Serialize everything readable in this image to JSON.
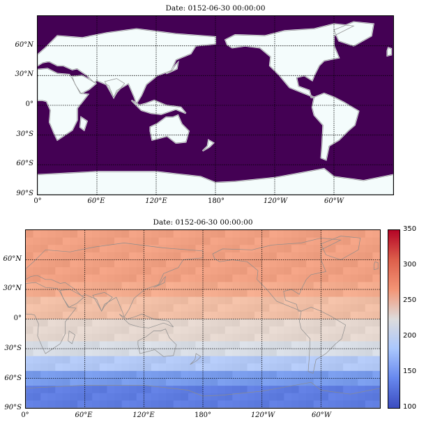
{
  "panels": [
    {
      "id": "top",
      "title": "Date: 0152-06-30 00:00:00",
      "colors": {
        "ocean": "#440154",
        "land": "#f4fcfc",
        "coast": "#8c8c8c",
        "grid": "#000000"
      }
    },
    {
      "id": "bottom",
      "title": "Date: 0152-06-30 00:00:00",
      "colors": {
        "coast": "#8c8c8c",
        "grid": "#000000"
      }
    }
  ],
  "lat_ticks": [
    "60°N",
    "30°N",
    "0°",
    "30°S",
    "60°S",
    "90°S"
  ],
  "lon_ticks": [
    "0°",
    "60°E",
    "120°E",
    "180°",
    "120°W",
    "60°W"
  ],
  "colorbar": {
    "ticks": [
      "350",
      "300",
      "250",
      "200",
      "150",
      "100"
    ],
    "colors": [
      "#b40426",
      "#dd5f4b",
      "#f39475",
      "#dddcdc",
      "#aac7fd",
      "#6788ee",
      "#3b4cc0"
    ]
  }
}
